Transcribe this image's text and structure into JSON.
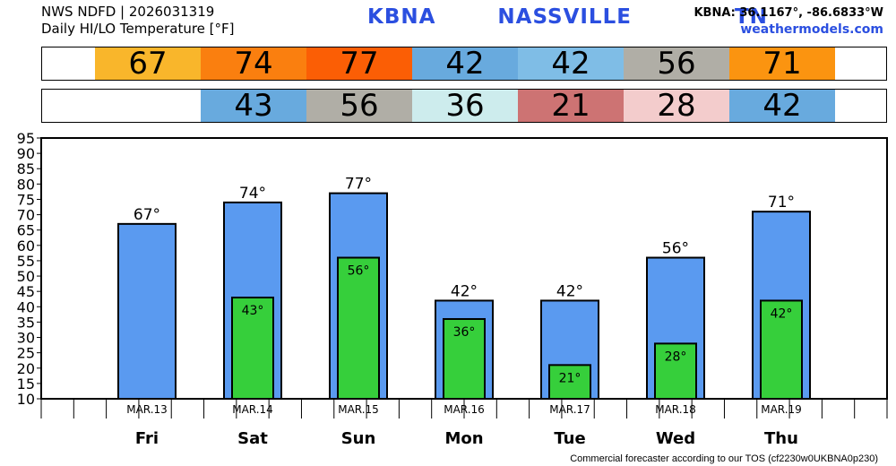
{
  "header": {
    "source": "NWS NDFD | 2026031319",
    "subtitle": "Daily HI/LO Temperature [°F]",
    "station": "KBNA   NASSVILLE     TN",
    "coords": "KBNA: 36.1167°, -86.6833°W",
    "site": "weathermodels.com"
  },
  "footer": "Commercial forecaster according to our TOS (cf2230w0UKBNA0p230)",
  "high_row": [
    {
      "value": "67",
      "color": "#f9b62b"
    },
    {
      "value": "74",
      "color": "#fa7f0f"
    },
    {
      "value": "77",
      "color": "#fb5e05"
    },
    {
      "value": "42",
      "color": "#68aade"
    },
    {
      "value": "42",
      "color": "#7fbde6"
    },
    {
      "value": "56",
      "color": "#b0aea6"
    },
    {
      "value": "71",
      "color": "#fb9410"
    }
  ],
  "low_row": [
    {
      "value": "",
      "color": "#ffffff"
    },
    {
      "value": "43",
      "color": "#68aade"
    },
    {
      "value": "56",
      "color": "#b0aea6"
    },
    {
      "value": "36",
      "color": "#cdeced"
    },
    {
      "value": "21",
      "color": "#cd7373"
    },
    {
      "value": "28",
      "color": "#f3cccc"
    },
    {
      "value": "42",
      "color": "#68aade"
    }
  ],
  "colors": {
    "high_bar": "#5a9af0",
    "low_bar": "#36cf3b"
  },
  "chart_data": {
    "type": "bar",
    "categories": [
      "MAR.13",
      "MAR.14",
      "MAR.15",
      "MAR.16",
      "MAR.17",
      "MAR.18",
      "MAR.19"
    ],
    "days": [
      "Fri",
      "Sat",
      "Sun",
      "Mon",
      "Tue",
      "Wed",
      "Thu"
    ],
    "series": [
      {
        "values": [
          67,
          74,
          77,
          42,
          42,
          56,
          71
        ]
      },
      {
        "values": [
          null,
          43,
          56,
          36,
          21,
          28,
          42
        ]
      }
    ],
    "ylim": [
      10,
      95
    ],
    "yticks": [
      10,
      15,
      20,
      25,
      30,
      35,
      40,
      45,
      50,
      55,
      60,
      65,
      70,
      75,
      80,
      85,
      90,
      95
    ],
    "unit_suffix": "°",
    "grid": false
  }
}
